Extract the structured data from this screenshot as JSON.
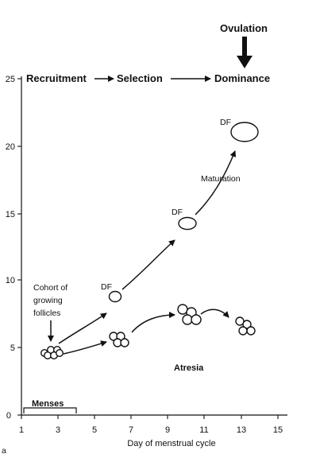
{
  "diagram": {
    "y_axis": {
      "ticks": [
        "0",
        "5",
        "10",
        "15",
        "20",
        "25"
      ]
    },
    "x_axis": {
      "label": "Day of menstrual cycle",
      "ticks": [
        "1",
        "3",
        "5",
        "7",
        "9",
        "11",
        "13",
        "15"
      ]
    },
    "stages": {
      "ovulation": "Ovulation",
      "recruitment": "Recruitment",
      "selection": "Selection",
      "dominance": "Dominance"
    },
    "labels": {
      "df_1": "DF",
      "df_2": "DF",
      "df_3": "DF",
      "maturation": "Maturation",
      "cohort_line1": "Cohort of",
      "cohort_line2": "growing",
      "cohort_line3": "follicles",
      "atresia": "Atresia",
      "menses": "Menses"
    },
    "corner_mark": "a"
  }
}
